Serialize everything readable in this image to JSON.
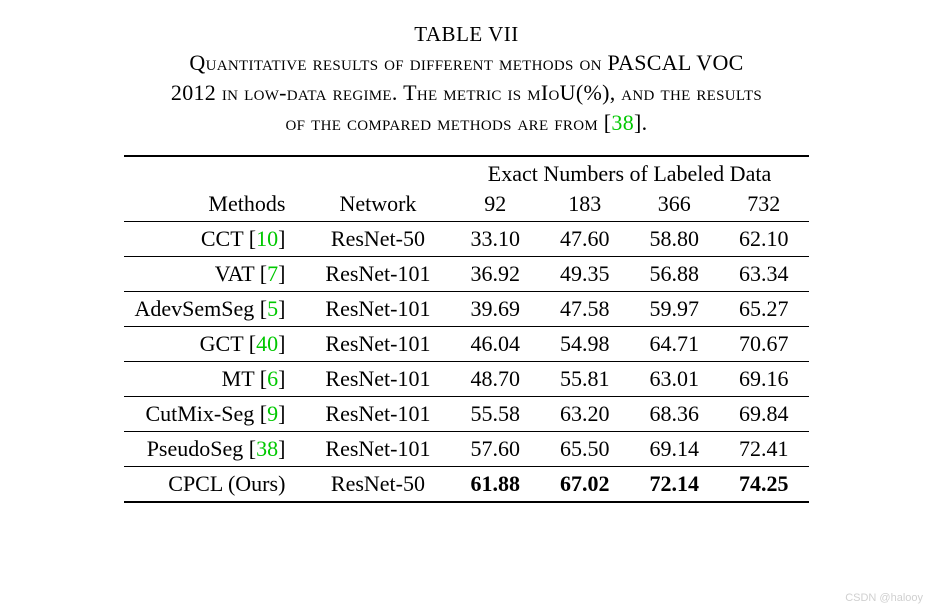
{
  "caption": {
    "table_number": "TABLE VII",
    "line1_a": "Quantitative results of different methods on PASCAL VOC",
    "line2_a": "2012 in low-data regime. The metric is mIoU(%), and the results",
    "line3_a": "of the compared methods are from [",
    "line3_cite": "38",
    "line3_b": "]."
  },
  "table": {
    "spanner": "Exact Numbers of Labeled Data",
    "header": {
      "methods": "Methods",
      "network": "Network",
      "c92": "92",
      "c183": "183",
      "c366": "366",
      "c732": "732"
    },
    "rows": [
      {
        "method": "CCT",
        "cite": "10",
        "network": "ResNet-50",
        "v92": "33.10",
        "v183": "47.60",
        "v366": "58.80",
        "v732": "62.10",
        "bold": false
      },
      {
        "method": "VAT",
        "cite": "7",
        "network": "ResNet-101",
        "v92": "36.92",
        "v183": "49.35",
        "v366": "56.88",
        "v732": "63.34",
        "bold": false
      },
      {
        "method": "AdevSemSeg",
        "cite": "5",
        "network": "ResNet-101",
        "v92": "39.69",
        "v183": "47.58",
        "v366": "59.97",
        "v732": "65.27",
        "bold": false
      },
      {
        "method": "GCT",
        "cite": "40",
        "network": "ResNet-101",
        "v92": "46.04",
        "v183": "54.98",
        "v366": "64.71",
        "v732": "70.67",
        "bold": false
      },
      {
        "method": "MT",
        "cite": "6",
        "network": "ResNet-101",
        "v92": "48.70",
        "v183": "55.81",
        "v366": "63.01",
        "v732": "69.16",
        "bold": false
      },
      {
        "method": "CutMix-Seg",
        "cite": "9",
        "network": "ResNet-101",
        "v92": "55.58",
        "v183": "63.20",
        "v366": "68.36",
        "v732": "69.84",
        "bold": false
      },
      {
        "method": "PseudoSeg",
        "cite": "38",
        "network": "ResNet-101",
        "v92": "57.60",
        "v183": "65.50",
        "v366": "69.14",
        "v732": "72.41",
        "bold": false
      }
    ],
    "ours": {
      "method": "CPCL (Ours)",
      "network": "ResNet-50",
      "v92": "61.88",
      "v183": "67.02",
      "v366": "72.14",
      "v732": "74.25"
    }
  },
  "watermark": "CSDN @halooy",
  "colors": {
    "cite": "#00c800",
    "text": "#000000",
    "background": "#ffffff"
  }
}
